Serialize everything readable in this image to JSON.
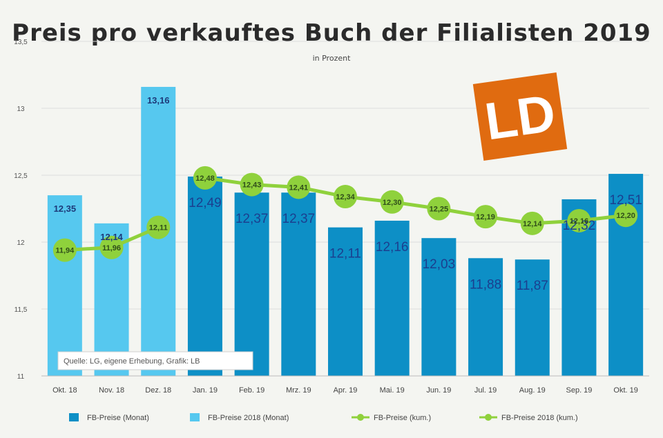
{
  "chart_data": {
    "type": "bar",
    "title": "Preis pro verkauftes Buch der Filialisten 2019",
    "subtitle": "in Prozent",
    "xlabel": "",
    "ylabel": "",
    "ylim": [
      11,
      13.5
    ],
    "yticks": [
      "11",
      "11,5",
      "12",
      "12,5",
      "13",
      "13,5"
    ],
    "grid": true,
    "legend_position": "bottom",
    "categories": [
      "Okt. 18",
      "Nov. 18",
      "Dez. 18",
      "Jan. 19",
      "Feb. 19",
      "Mrz. 19",
      "Apr. 19",
      "Mai. 19",
      "Jun. 19",
      "Jul. 19",
      "Aug. 19",
      "Sep. 19",
      "Okt. 19"
    ],
    "series": [
      {
        "name": "FB-Preise (Monat)",
        "kind": "bar",
        "color": "#0d8fc6",
        "values": [
          null,
          null,
          null,
          12.49,
          12.37,
          12.37,
          12.11,
          12.16,
          12.03,
          11.88,
          11.87,
          12.32,
          12.51
        ],
        "labels": [
          "",
          "",
          "",
          "12,49",
          "12,37",
          "12,37",
          "12,11",
          "12,16",
          "12,03",
          "11,88",
          "11,87",
          "12,32",
          "12,51"
        ]
      },
      {
        "name": "FB-Preise 2018 (Monat)",
        "kind": "bar",
        "color": "#56c8ef",
        "values": [
          12.35,
          12.14,
          13.16,
          null,
          null,
          null,
          null,
          null,
          null,
          null,
          null,
          null,
          null
        ],
        "labels": [
          "12,35",
          "12,14",
          "13,16",
          "",
          "",
          "",
          "",
          "",
          "",
          "",
          "",
          "",
          ""
        ]
      },
      {
        "name": "FB-Preise (kum.)",
        "kind": "line",
        "color": "#8fd13c",
        "values": [
          null,
          null,
          null,
          12.48,
          12.43,
          12.41,
          12.34,
          12.3,
          12.25,
          12.19,
          12.14,
          12.16,
          12.2
        ],
        "labels": [
          "",
          "",
          "",
          "12,48",
          "12,43",
          "12,41",
          "12,34",
          "12,30",
          "12,25",
          "12,19",
          "12,14",
          "12,16",
          "12,20"
        ]
      },
      {
        "name": "FB-Preise 2018 (kum.)",
        "kind": "line",
        "color": "#8fd13c",
        "values": [
          11.94,
          11.96,
          12.11,
          null,
          null,
          null,
          null,
          null,
          null,
          null,
          null,
          null,
          null
        ],
        "labels": [
          "11,94",
          "11,96",
          "12,11",
          "",
          "",
          "",
          "",
          "",
          "",
          "",
          "",
          "",
          ""
        ]
      }
    ],
    "annotation": "Quelle: LG, eigene Erhebung, Grafik: LB"
  },
  "logo": {
    "text": "LD",
    "color": "#e06b10"
  }
}
